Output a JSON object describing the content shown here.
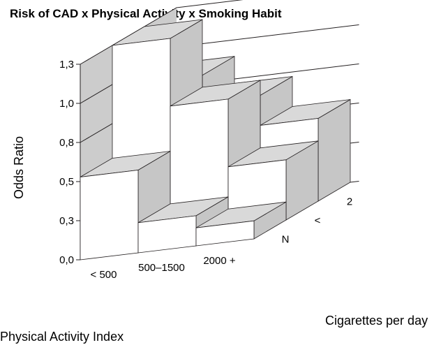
{
  "chart_data": {
    "type": "bar3d",
    "title": "Risk of CAD x Physical Activity x Smoking Habit",
    "ylabel": "Odds Ratio",
    "xlabel": "Physical Activity Index",
    "zlabel": "Cigarettes per day",
    "y_ticks": [
      "0,0",
      "0,3",
      "0,5",
      "0,8",
      "1,0",
      "1,3"
    ],
    "ylim": [
      0,
      1.3
    ],
    "x_categories": [
      "< 500",
      "500–1500",
      "2000 +"
    ],
    "z_categories": [
      "N",
      "<",
      "2"
    ],
    "values": [
      [
        0.55,
        0.2,
        0.12
      ],
      [
        1.3,
        0.85,
        0.4
      ],
      [
        0.93,
        0.75,
        0.55
      ]
    ],
    "colors": {
      "front": "#ffffff",
      "top": "#d9d9d9",
      "side": "#c6c6c6",
      "wall": "#cccccc",
      "line": "#231f20"
    }
  }
}
